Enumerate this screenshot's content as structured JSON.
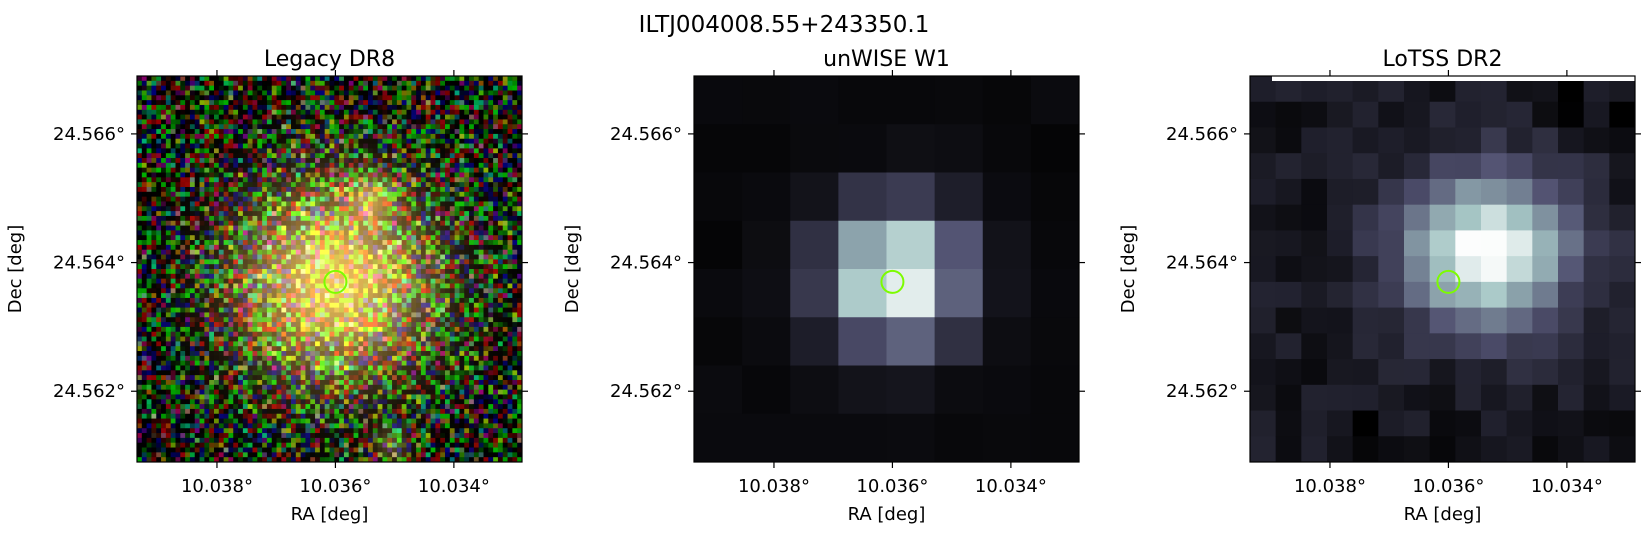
{
  "figure": {
    "suptitle": "ILTJ004008.55+243350.1"
  },
  "colors": {
    "marker": "#7cfc00",
    "axis": "#000000",
    "background": "#ffffff"
  },
  "chart_data": [
    {
      "type": "heatmap",
      "title": "Legacy DR8",
      "xlabel": "RA [deg]",
      "ylabel": "Dec [deg]",
      "x_ticks": [
        10.038,
        10.036,
        10.034
      ],
      "x_tick_labels": [
        "10.038°",
        "10.036°",
        "10.034°"
      ],
      "y_ticks": [
        24.566,
        24.564,
        24.562
      ],
      "y_tick_labels": [
        "24.566°",
        "24.564°",
        "24.562°"
      ],
      "xlim": [
        10.03935,
        10.03285
      ],
      "ylim": [
        24.5609,
        24.5669
      ],
      "image": "rgb optical cutout, noisy multicolor pixels with a diffuse yellow-orange galaxy centered near the marker and a faint compact source to the upper right",
      "marker": {
        "type": "circle",
        "ra": 10.036,
        "dec": 24.5637
      }
    },
    {
      "type": "heatmap",
      "title": "unWISE W1",
      "xlabel": "RA [deg]",
      "ylabel": "Dec [deg]",
      "x_ticks": [
        10.038,
        10.036,
        10.034
      ],
      "x_tick_labels": [
        "10.038°",
        "10.036°",
        "10.034°"
      ],
      "y_ticks": [
        24.566,
        24.564,
        24.562
      ],
      "y_tick_labels": [
        "24.566°",
        "24.564°",
        "24.562°"
      ],
      "xlim": [
        10.03935,
        10.03285
      ],
      "ylim": [
        24.5609,
        24.5669
      ],
      "colormap": "bone",
      "image": "coarse-pixel infrared cutout, bright compact source at the center",
      "marker": {
        "type": "circle",
        "ra": 10.036,
        "dec": 24.5637
      }
    },
    {
      "type": "heatmap",
      "title": "LoTSS DR2",
      "xlabel": "RA [deg]",
      "ylabel": "Dec [deg]",
      "x_ticks": [
        10.038,
        10.036,
        10.034
      ],
      "x_tick_labels": [
        "10.038°",
        "10.036°",
        "10.034°"
      ],
      "y_ticks": [
        24.566,
        24.564,
        24.562
      ],
      "y_tick_labels": [
        "24.566°",
        "24.564°",
        "24.562°"
      ],
      "xlim": [
        10.03935,
        10.03285
      ],
      "ylim": [
        24.5609,
        24.5669
      ],
      "colormap": "bone",
      "image": "radio cutout, extended bright emission peaking slightly up and right of the marker",
      "marker": {
        "type": "circle",
        "ra": 10.036,
        "dec": 24.5637
      }
    }
  ]
}
